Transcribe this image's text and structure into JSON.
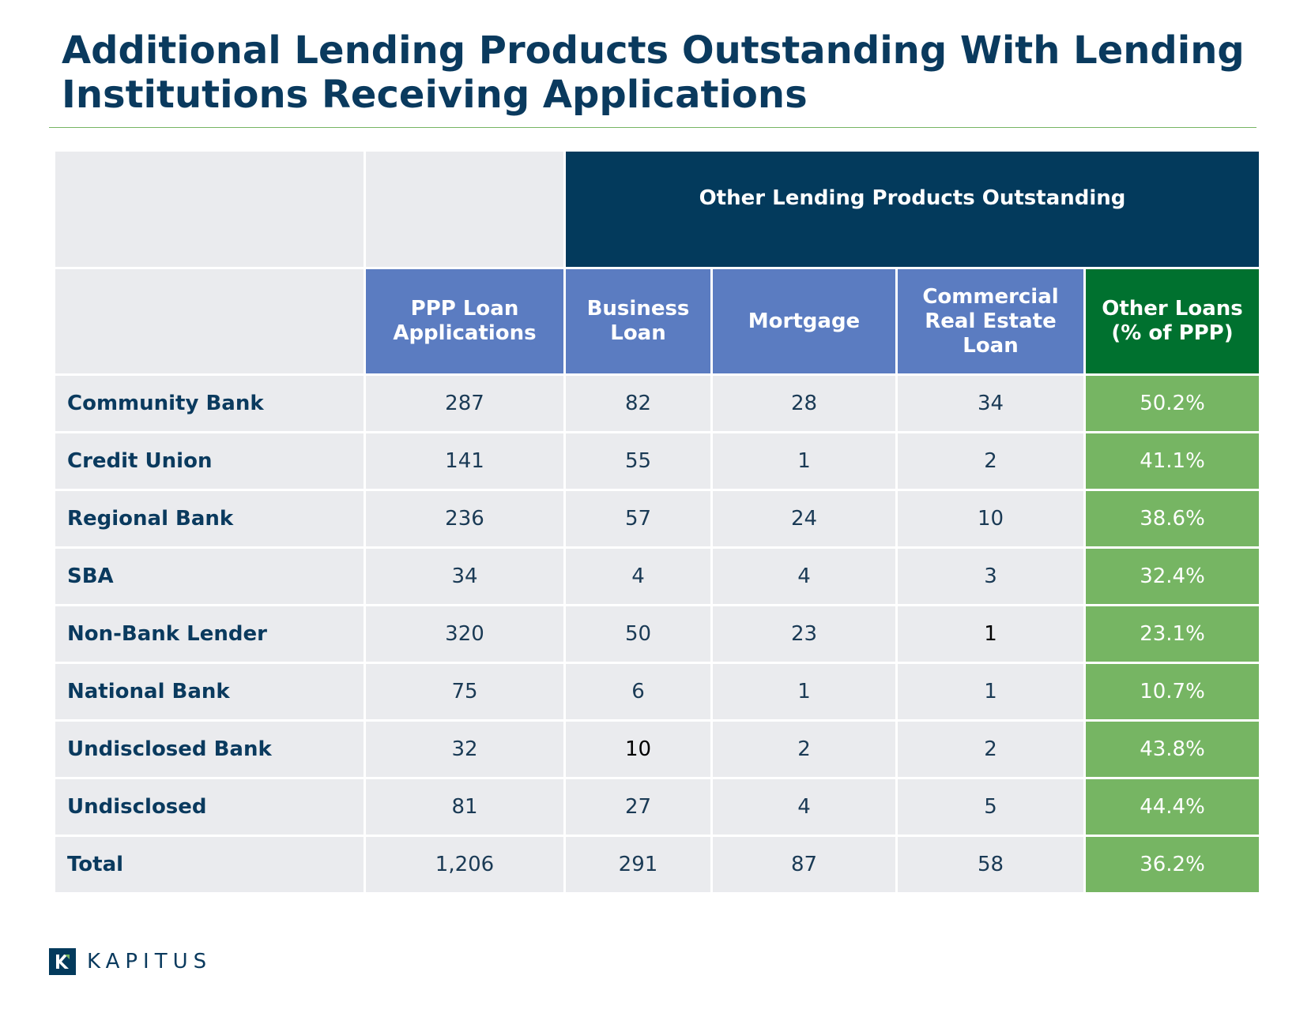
{
  "title": {
    "line1": "Additional Lending Products Outstanding With Lending",
    "line2": "Institutions Receiving Applications"
  },
  "table": {
    "group_header": "Other Lending Products Outstanding",
    "headers": {
      "ppp": "PPP Loan Applications",
      "business": "Business Loan",
      "mortgage": "Mortgage",
      "cre": "Commercial Real Estate Loan",
      "other": "Other Loans (% of PPP)"
    },
    "rows": [
      {
        "label": "Community Bank",
        "ppp": "287",
        "business": "82",
        "mortgage": "28",
        "cre": "34",
        "other": "50.2%"
      },
      {
        "label": "Credit Union",
        "ppp": "141",
        "business": "55",
        "mortgage": "1",
        "cre": "2",
        "other": "41.1%"
      },
      {
        "label": "Regional Bank",
        "ppp": "236",
        "business": "57",
        "mortgage": "24",
        "cre": "10",
        "other": "38.6%"
      },
      {
        "label": "SBA",
        "ppp": "34",
        "business": "4",
        "mortgage": "4",
        "cre": "3",
        "other": "32.4%"
      },
      {
        "label": "Non-Bank Lender",
        "ppp": "320",
        "business": "50",
        "mortgage": "23",
        "cre": "1",
        "other": "23.1%"
      },
      {
        "label": "National Bank",
        "ppp": "75",
        "business": "6",
        "mortgage": "1",
        "cre": "1",
        "other": "10.7%"
      },
      {
        "label": "Undisclosed Bank",
        "ppp": "32",
        "business": "10",
        "mortgage": "2",
        "cre": "2",
        "other": "43.8%"
      },
      {
        "label": "Undisclosed",
        "ppp": "81",
        "business": "27",
        "mortgage": "4",
        "cre": "5",
        "other": "44.4%"
      },
      {
        "label": "Total",
        "ppp": "1,206",
        "business": "291",
        "mortgage": "87",
        "cre": "58",
        "other": "36.2%"
      }
    ]
  },
  "footer": {
    "brand": "KAPITUS",
    "logo_icon": "kapitus-k-icon"
  },
  "colors": {
    "title": "#0a3a5e",
    "navy_header": "#033a5c",
    "blue_header": "#5b7cc1",
    "green_header": "#00712f",
    "green_cell": "#76b563",
    "cell_bg": "#eaebee"
  }
}
